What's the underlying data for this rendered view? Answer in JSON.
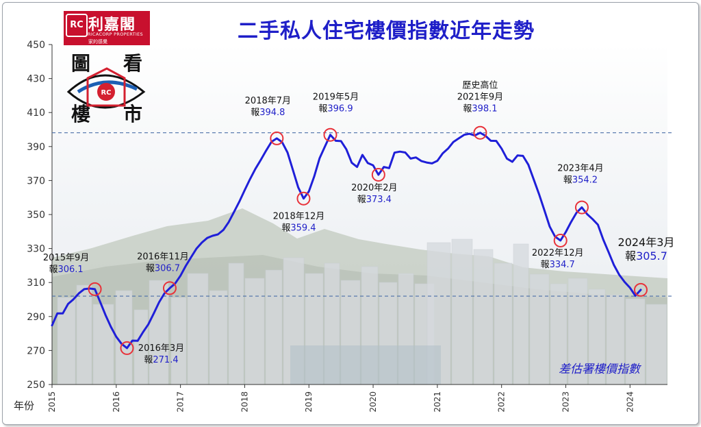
{
  "title": "二手私人住宅樓價指數近年走勢",
  "logo": {
    "mark": "RC",
    "name_cn": "利嘉閣",
    "name_en": "RICACORP PROPERTIES",
    "tagline": "家的感覺"
  },
  "badge": {
    "chars": [
      "圖",
      "看",
      "樓",
      "市"
    ],
    "mark": "RC"
  },
  "source_label": "差估署樓價指數",
  "chart_data": {
    "type": "line",
    "xlabel": "年份",
    "ylabel": "",
    "ylim": [
      250,
      450
    ],
    "yticks": [
      250,
      270,
      290,
      310,
      330,
      350,
      370,
      390,
      410,
      430,
      450
    ],
    "xlim": [
      2015.0,
      2024.583
    ],
    "xticks": [
      "2015",
      "2016",
      "2017",
      "2018",
      "2019",
      "2020",
      "2021",
      "2022",
      "2023",
      "2024"
    ],
    "reference_lines": [
      398.1,
      302.0
    ],
    "series": [
      {
        "values": [
          [
            2015.0,
            284.8
          ],
          [
            2015.083,
            291.8
          ],
          [
            2015.167,
            291.8
          ],
          [
            2015.25,
            297.4
          ],
          [
            2015.333,
            300.1
          ],
          [
            2015.417,
            303.6
          ],
          [
            2015.5,
            306.1
          ],
          [
            2015.583,
            306.5
          ],
          [
            2015.667,
            306.1
          ],
          [
            2015.75,
            298.5
          ],
          [
            2015.833,
            290.9
          ],
          [
            2015.917,
            283.9
          ],
          [
            2016.0,
            278.1
          ],
          [
            2016.083,
            273.9
          ],
          [
            2016.167,
            271.4
          ],
          [
            2016.25,
            275.8
          ],
          [
            2016.333,
            275.7
          ],
          [
            2016.417,
            280.8
          ],
          [
            2016.5,
            285.4
          ],
          [
            2016.583,
            291.7
          ],
          [
            2016.667,
            298.4
          ],
          [
            2016.75,
            303.6
          ],
          [
            2016.833,
            306.7
          ],
          [
            2016.917,
            309.4
          ],
          [
            2017.0,
            314.0
          ],
          [
            2017.083,
            319.8
          ],
          [
            2017.167,
            325.0
          ],
          [
            2017.25,
            330.0
          ],
          [
            2017.333,
            333.5
          ],
          [
            2017.417,
            336.2
          ],
          [
            2017.5,
            337.5
          ],
          [
            2017.583,
            338.3
          ],
          [
            2017.667,
            340.9
          ],
          [
            2017.75,
            345.5
          ],
          [
            2017.833,
            351.5
          ],
          [
            2017.917,
            357.6
          ],
          [
            2018.0,
            364.3
          ],
          [
            2018.083,
            370.8
          ],
          [
            2018.167,
            376.9
          ],
          [
            2018.25,
            382.1
          ],
          [
            2018.333,
            387.6
          ],
          [
            2018.417,
            392.8
          ],
          [
            2018.5,
            394.8
          ],
          [
            2018.583,
            392.6
          ],
          [
            2018.667,
            386.5
          ],
          [
            2018.75,
            376.3
          ],
          [
            2018.833,
            366.0
          ],
          [
            2018.917,
            359.4
          ],
          [
            2019.0,
            363.6
          ],
          [
            2019.083,
            372.4
          ],
          [
            2019.167,
            383.2
          ],
          [
            2019.25,
            390.1
          ],
          [
            2019.333,
            396.9
          ],
          [
            2019.417,
            393.4
          ],
          [
            2019.5,
            393.2
          ],
          [
            2019.583,
            388.4
          ],
          [
            2019.667,
            380.5
          ],
          [
            2019.75,
            378.0
          ],
          [
            2019.833,
            385.1
          ],
          [
            2019.917,
            380.3
          ],
          [
            2020.0,
            378.9
          ],
          [
            2020.083,
            373.4
          ],
          [
            2020.167,
            378.0
          ],
          [
            2020.25,
            377.3
          ],
          [
            2020.333,
            386.4
          ],
          [
            2020.417,
            387.0
          ],
          [
            2020.5,
            386.5
          ],
          [
            2020.583,
            382.9
          ],
          [
            2020.667,
            383.6
          ],
          [
            2020.75,
            381.5
          ],
          [
            2020.833,
            380.6
          ],
          [
            2020.917,
            380.1
          ],
          [
            2021.0,
            381.6
          ],
          [
            2021.083,
            386.0
          ],
          [
            2021.167,
            388.8
          ],
          [
            2021.25,
            392.7
          ],
          [
            2021.333,
            394.8
          ],
          [
            2021.417,
            396.9
          ],
          [
            2021.5,
            397.5
          ],
          [
            2021.583,
            396.5
          ],
          [
            2021.667,
            398.1
          ],
          [
            2021.75,
            396.3
          ],
          [
            2021.833,
            393.4
          ],
          [
            2021.917,
            393.3
          ],
          [
            2022.0,
            388.8
          ],
          [
            2022.083,
            382.9
          ],
          [
            2022.167,
            381.0
          ],
          [
            2022.25,
            384.8
          ],
          [
            2022.333,
            384.5
          ],
          [
            2022.417,
            379.3
          ],
          [
            2022.5,
            370.7
          ],
          [
            2022.583,
            362.0
          ],
          [
            2022.667,
            352.4
          ],
          [
            2022.75,
            342.9
          ],
          [
            2022.833,
            337.0
          ],
          [
            2022.917,
            334.7
          ],
          [
            2023.0,
            339.7
          ],
          [
            2023.083,
            345.7
          ],
          [
            2023.167,
            351.1
          ],
          [
            2023.25,
            354.2
          ],
          [
            2023.333,
            350.2
          ],
          [
            2023.417,
            347.3
          ],
          [
            2023.5,
            344.0
          ],
          [
            2023.583,
            335.3
          ],
          [
            2023.667,
            327.8
          ],
          [
            2023.75,
            320.2
          ],
          [
            2023.833,
            314.5
          ],
          [
            2023.917,
            310.3
          ],
          [
            2024.0,
            306.9
          ],
          [
            2024.083,
            302.2
          ],
          [
            2024.167,
            305.7
          ]
        ]
      }
    ],
    "annotations": [
      {
        "x": 2015.667,
        "y": 306.1,
        "lines": [
          "2015年9月"
        ],
        "prefix": "報",
        "value": "306.1"
      },
      {
        "x": 2016.167,
        "y": 271.4,
        "lines": [
          "2016年3月"
        ],
        "prefix": "報",
        "value": "271.4"
      },
      {
        "x": 2016.833,
        "y": 306.7,
        "lines": [
          "2016年11月"
        ],
        "prefix": "報",
        "value": "306.7"
      },
      {
        "x": 2018.5,
        "y": 394.8,
        "lines": [
          "2018年7月"
        ],
        "prefix": "報",
        "value": "394.8"
      },
      {
        "x": 2018.917,
        "y": 359.4,
        "lines": [
          "2018年12月"
        ],
        "prefix": "報",
        "value": "359.4"
      },
      {
        "x": 2019.333,
        "y": 396.9,
        "lines": [
          "2019年5月"
        ],
        "prefix": "報",
        "value": "396.9"
      },
      {
        "x": 2020.083,
        "y": 373.4,
        "lines": [
          "2020年2月"
        ],
        "prefix": "報",
        "value": "373.4"
      },
      {
        "x": 2021.667,
        "y": 398.1,
        "lines": [
          "歷史高位",
          "2021年9月"
        ],
        "prefix": "報",
        "value": "398.1"
      },
      {
        "x": 2022.917,
        "y": 334.7,
        "lines": [
          "2022年12月"
        ],
        "prefix": "報",
        "value": "334.7"
      },
      {
        "x": 2023.25,
        "y": 354.2,
        "lines": [
          "2023年4月"
        ],
        "prefix": "報",
        "value": "354.2"
      },
      {
        "x": 2024.167,
        "y": 305.7,
        "lines": [
          "2024年3月"
        ],
        "prefix": "報",
        "value": "305.7"
      }
    ]
  }
}
